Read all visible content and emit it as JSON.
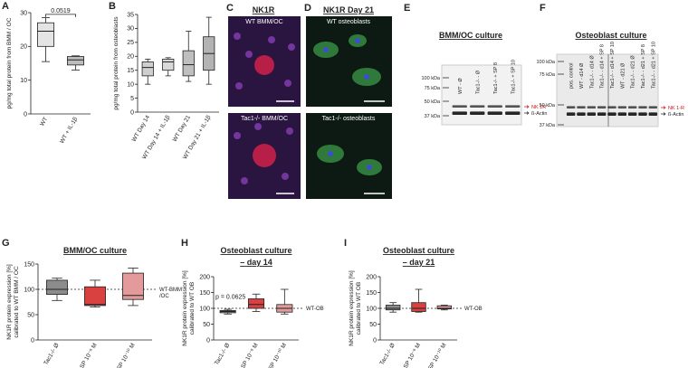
{
  "chart_data": [
    {
      "panel": "A",
      "type": "box",
      "ylabel": [
        "pg/mg total protein from BMM / OC"
      ],
      "ylim": [
        0,
        30
      ],
      "yticks": [
        0,
        10,
        20,
        30
      ],
      "categories": [
        "WT",
        "WT + IL-1β"
      ],
      "annotation": "0.0519",
      "boxes": [
        {
          "min": 15.5,
          "q1": 20,
          "median": 24.5,
          "q3": 27,
          "max": 28.5,
          "color": "#e4e4e4"
        },
        {
          "min": 13,
          "q1": 14.5,
          "median": 16,
          "q3": 17,
          "max": 17.2,
          "color": "#bdbdbd"
        }
      ]
    },
    {
      "panel": "B",
      "type": "box",
      "ylabel": [
        "pg/mg total protein from osteoblasts"
      ],
      "ylim": [
        0,
        35
      ],
      "yticks": [
        0,
        5,
        10,
        15,
        20,
        25,
        30,
        35
      ],
      "categories": [
        "WT Day 14",
        "WT Day 14 + IL-1β",
        "WT Day 21",
        "WT Day 21 + IL-1β"
      ],
      "boxes": [
        {
          "min": 10,
          "q1": 13,
          "median": 16,
          "q3": 18,
          "max": 19,
          "color": "#cfcfcf"
        },
        {
          "min": 13,
          "q1": 15,
          "median": 18,
          "q3": 19,
          "max": 19.5,
          "color": "#d9d9d9"
        },
        {
          "min": 11,
          "q1": 13,
          "median": 17,
          "q3": 22,
          "max": 29,
          "color": "#bfbfbf"
        },
        {
          "min": 10,
          "q1": 15,
          "median": 21,
          "q3": 27,
          "max": 34,
          "color": "#b3b3b3"
        }
      ]
    },
    {
      "panel": "G",
      "type": "box",
      "title": "BMM/OC culture",
      "ylabel": [
        "NK1R protein expression [%]",
        "calibrated to WT BMM / OC"
      ],
      "ylim": [
        0,
        150
      ],
      "yticks": [
        0,
        50,
        100,
        150
      ],
      "ref_line": 100,
      "ref_label": [
        "WT-BMM",
        "/OC"
      ],
      "categories": [
        "Tac1-/- Ø",
        "+ SP 10⁻⁸ M",
        "+ SP 10⁻¹⁰ M"
      ],
      "boxes": [
        {
          "min": 78,
          "q1": 90,
          "median": 100,
          "q3": 118,
          "max": 122,
          "color": "#8c8c8c"
        },
        {
          "min": 65,
          "q1": 68,
          "median": 70,
          "q3": 105,
          "max": 118,
          "color": "#d94040"
        },
        {
          "min": 68,
          "q1": 80,
          "median": 88,
          "q3": 132,
          "max": 142,
          "color": "#e39a9a"
        }
      ]
    },
    {
      "panel": "H",
      "type": "box",
      "title": "Osteoblast culture",
      "subtitle": "– day 14",
      "ylabel": [
        "NK1R protein expression [%]",
        "calibrated to WT OB"
      ],
      "ylim": [
        0,
        200
      ],
      "yticks": [
        0,
        50,
        100,
        150,
        200
      ],
      "ref_line": 100,
      "ref_label": [
        "WT-OB"
      ],
      "annotation": "p = 0.0625",
      "categories": [
        "Tac1-/- Ø",
        "+ SP 10⁻⁸ M",
        "+ SP 10⁻¹⁰ M"
      ],
      "boxes": [
        {
          "min": 82,
          "q1": 86,
          "median": 90,
          "q3": 93,
          "max": 97,
          "color": "#8c8c8c"
        },
        {
          "min": 90,
          "q1": 100,
          "median": 112,
          "q3": 130,
          "max": 145,
          "color": "#d94040"
        },
        {
          "min": 82,
          "q1": 88,
          "median": 100,
          "q3": 112,
          "max": 160,
          "color": "#e39a9a"
        }
      ]
    },
    {
      "panel": "I",
      "type": "box",
      "title": "Osteoblast culture",
      "subtitle": "– day 21",
      "ylabel": [
        "NK1R protein expression [%]",
        "calibrated to WT OB"
      ],
      "ylim": [
        0,
        200
      ],
      "yticks": [
        0,
        50,
        100,
        150,
        200
      ],
      "ref_line": 100,
      "ref_label": [
        "WT-OB"
      ],
      "categories": [
        "Tac1-/- Ø",
        "+ SP 10⁻⁸ M",
        "+ SP 10⁻¹⁰ M"
      ],
      "boxes": [
        {
          "min": 88,
          "q1": 95,
          "median": 100,
          "q3": 110,
          "max": 118,
          "color": "#8c8c8c"
        },
        {
          "min": 88,
          "q1": 90,
          "median": 100,
          "q3": 118,
          "max": 160,
          "color": "#d94040"
        },
        {
          "min": 95,
          "q1": 98,
          "median": 100,
          "q3": 108,
          "max": 110,
          "color": "#e39a9a"
        }
      ]
    }
  ],
  "panels": {
    "C": {
      "panel": "C",
      "title": "NK1R",
      "images": [
        "WT BMM/OC",
        "Tac1-/- BMM/OC"
      ]
    },
    "D": {
      "panel": "D",
      "title": "NK1R Day 21",
      "images": [
        "WT osteoblasts",
        "Tac1-/- osteoblasts"
      ]
    },
    "E": {
      "panel": "E",
      "title": "BMM/OC culture",
      "markers": [
        "100 kDa",
        "75 kDa",
        "50 kDa",
        "37 kDa"
      ],
      "lanes": [
        "WT - Ø",
        "Tac1-/- - Ø",
        "Tac1-/- + SP 8",
        "Tac1-/- + SP 10"
      ],
      "bands": [
        "NK 1R",
        "ß-Actin"
      ]
    },
    "F": {
      "panel": "F",
      "title": "Osteoblast culture",
      "markers": [
        "100 kDa",
        "75 kDa",
        "50 kDa",
        "37 kDa"
      ],
      "lanes": [
        "pos. control",
        "WT - d14 Ø",
        "Tac1-/- - d14 Ø",
        "Tac1-/- - d14 + SP 8",
        "Tac1-/- - d14 + SP 10",
        "WT - d21 Ø",
        "Tac1-/- - d21 Ø",
        "Tac1-/- - d21 + SP 8",
        "Tac1-/- - d21 + SP 10"
      ],
      "bands": [
        "NK 1-R",
        "ß-Actin"
      ]
    }
  }
}
